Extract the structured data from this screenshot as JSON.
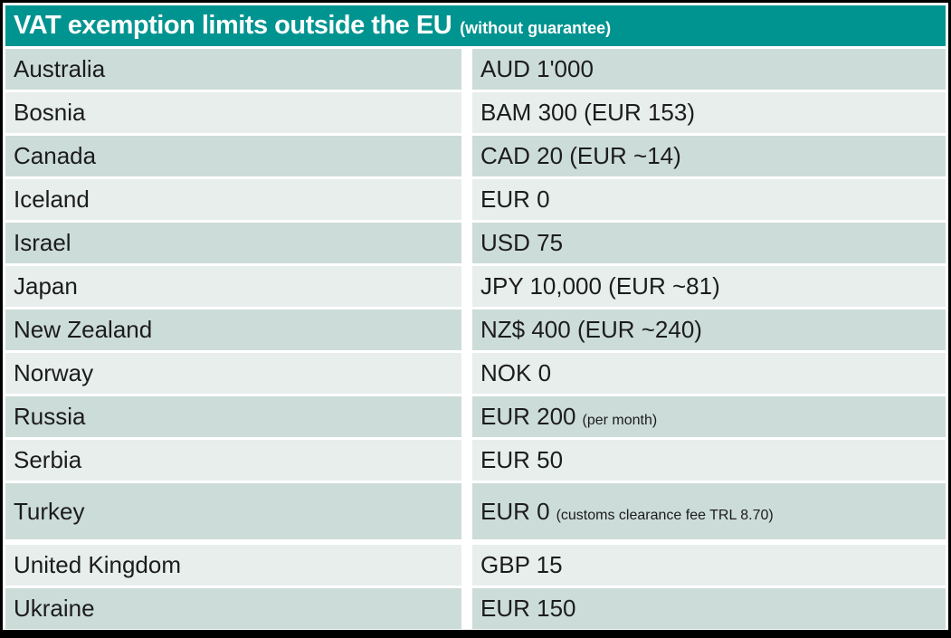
{
  "colors": {
    "accent": "#009490",
    "row_dark": "#ccdcd9",
    "row_light": "#e7eeec",
    "frame_border": "#000000",
    "text": "#1c1c1c",
    "header_text": "#ffffff"
  },
  "header": {
    "title": "VAT exemption limits outside the EU",
    "subtitle": "(without guarantee)"
  },
  "table": {
    "columns": [
      "country",
      "exemption_limit"
    ],
    "rows": [
      {
        "country": "Australia",
        "value": "AUD 1'000",
        "note": "",
        "shade": "dark"
      },
      {
        "country": "Bosnia",
        "value": "BAM 300 (EUR 153)",
        "note": "",
        "shade": "light"
      },
      {
        "country": "Canada",
        "value": "CAD 20 (EUR ~14)",
        "note": "",
        "shade": "dark"
      },
      {
        "country": "Iceland",
        "value": "EUR 0",
        "note": "",
        "shade": "light"
      },
      {
        "country": "Israel",
        "value": "USD 75",
        "note": "",
        "shade": "dark"
      },
      {
        "country": "Japan",
        "value": "JPY 10,000 (EUR ~81)",
        "note": "",
        "shade": "light"
      },
      {
        "country": "New Zealand",
        "value": "NZ$ 400 (EUR ~240)",
        "note": "",
        "shade": "dark"
      },
      {
        "country": "Norway",
        "value": "NOK 0",
        "note": "",
        "shade": "light"
      },
      {
        "country": "Russia",
        "value": "EUR 200",
        "note": "(per month)",
        "shade": "dark"
      },
      {
        "country": "Serbia",
        "value": "EUR 50",
        "note": "",
        "shade": "light"
      },
      {
        "country": "Turkey",
        "value": "EUR 0",
        "note": "(customs clearance fee TRL 8.70)",
        "shade": "dark",
        "tall": true
      },
      {
        "country": "United Kingdom",
        "value": "GBP 15",
        "note": "",
        "shade": "light",
        "gap_before": true
      },
      {
        "country": "Ukraine",
        "value": "EUR 150",
        "note": "",
        "shade": "dark"
      }
    ]
  }
}
